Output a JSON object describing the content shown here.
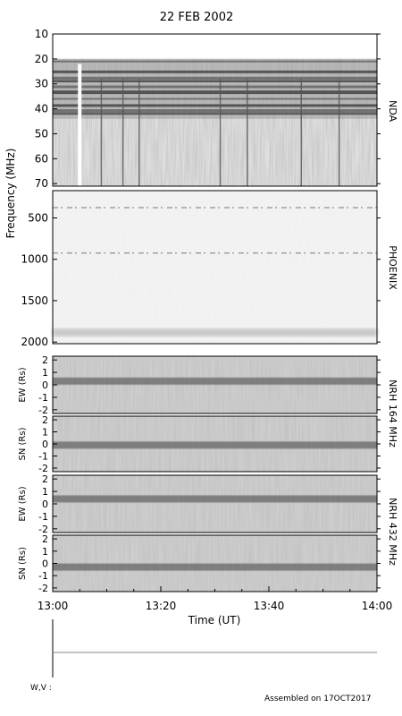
{
  "chart_data": {
    "type": "heatmap",
    "title": "22 FEB 2002",
    "xlabel": "Time (UT)",
    "x_range": [
      "13:00",
      "14:00"
    ],
    "x_ticks": [
      "13:00",
      "13:20",
      "13:40",
      "14:00"
    ],
    "shared_ylabel": "Frequency (MHz)",
    "panels": [
      {
        "id": "nda",
        "instrument": "NDA",
        "ylim": [
          10,
          71
        ],
        "y_ticks": [
          "10",
          "20",
          "30",
          "40",
          "50",
          "60",
          "70"
        ],
        "dark_bands_mhz": [
          21,
          25,
          27.5,
          29,
          31,
          33,
          36,
          38.5,
          40.5,
          42
        ],
        "vertical_features_ut": [
          "13:05",
          "13:09",
          "13:13",
          "13:16",
          "13:31",
          "13:36",
          "13:46",
          "13:53"
        ],
        "gap_ut": "13:05"
      },
      {
        "id": "phoenix",
        "instrument": "PHOENIX",
        "ylim": [
          170,
          2020
        ],
        "y_ticks": [
          "500",
          "1000",
          "1500",
          "2000"
        ],
        "line_features_mhz": [
          375,
          925
        ],
        "band_features_mhz": [
          1870,
          1900
        ]
      },
      {
        "id": "nrh164_ew",
        "ylabel": "EW (Rs)",
        "ylim": [
          -2.3,
          2.3
        ],
        "y_ticks": [
          "2",
          "1",
          "0",
          "-1",
          "-2"
        ],
        "band_center_rs": 0.3
      },
      {
        "id": "nrh164_sn",
        "ylabel": "SN (Rs)",
        "ylim": [
          -2.3,
          2.3
        ],
        "y_ticks": [
          "2",
          "1",
          "0",
          "-1",
          "-2"
        ],
        "band_center_rs": -0.1
      },
      {
        "id": "nrh432_ew",
        "ylabel": "EW (Rs)",
        "ylim": [
          -2.3,
          2.3
        ],
        "y_ticks": [
          "2",
          "1",
          "0",
          "-1",
          "-2"
        ],
        "band_center_rs": 0.4
      },
      {
        "id": "nrh432_sn",
        "ylabel": "SN (Rs)",
        "ylim": [
          -2.3,
          2.3
        ],
        "y_ticks": [
          "2",
          "1",
          "0",
          "-1",
          "-2"
        ],
        "band_center_rs": -0.3
      }
    ],
    "right_labels": [
      "NDA",
      "PHOENIX",
      "NRH 164 MHz",
      "NRH 432 MHz"
    ],
    "footer_label": "W,V :",
    "footer_note": "Assembled on 17OCT2017"
  }
}
